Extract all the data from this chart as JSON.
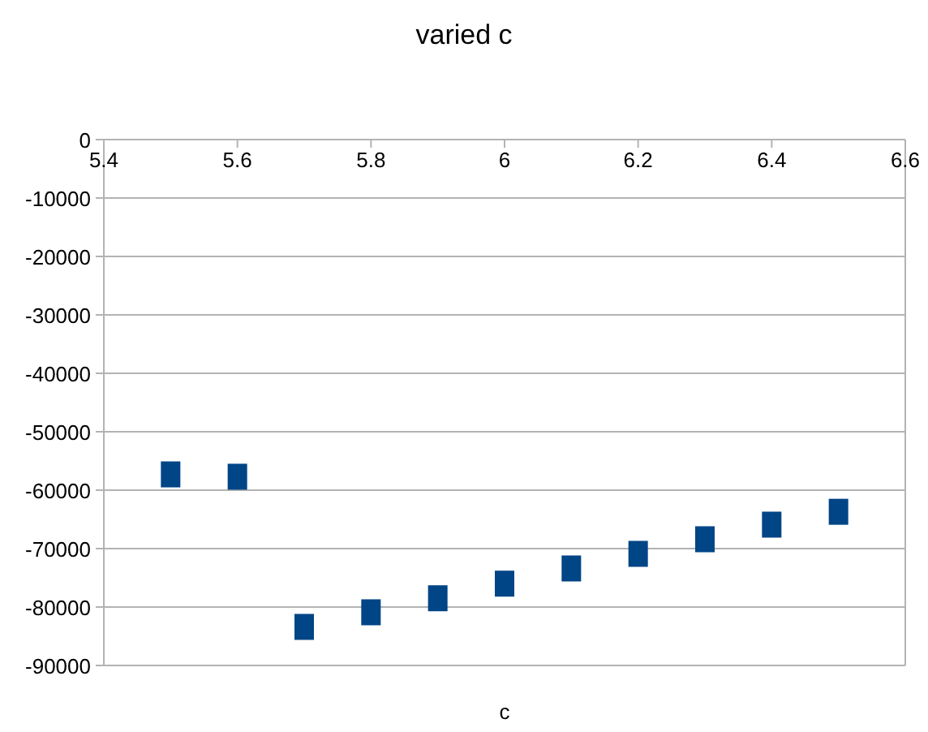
{
  "chart_data": {
    "type": "scatter",
    "title": "varied c",
    "xlabel": "c",
    "x": [
      5.5,
      5.6,
      5.7,
      5.8,
      5.9,
      6.0,
      6.1,
      6.2,
      6.3,
      6.4,
      6.5
    ],
    "series": [
      {
        "color": "#004586",
        "values": [
          -57300,
          -57700,
          -83400,
          -80900,
          -78500,
          -76000,
          -73400,
          -70900,
          -68400,
          -65900,
          -63700
        ]
      }
    ],
    "xlim": [
      5.4,
      6.6
    ],
    "xticks": [
      5.4,
      5.6,
      5.8,
      6,
      6.2,
      6.4,
      6.6
    ],
    "ylim": [
      -90000,
      0
    ],
    "yticks": [
      -90000,
      -80000,
      -70000,
      -60000,
      -50000,
      -40000,
      -30000,
      -20000,
      -10000,
      0
    ],
    "grid": "y",
    "marker": "square"
  }
}
